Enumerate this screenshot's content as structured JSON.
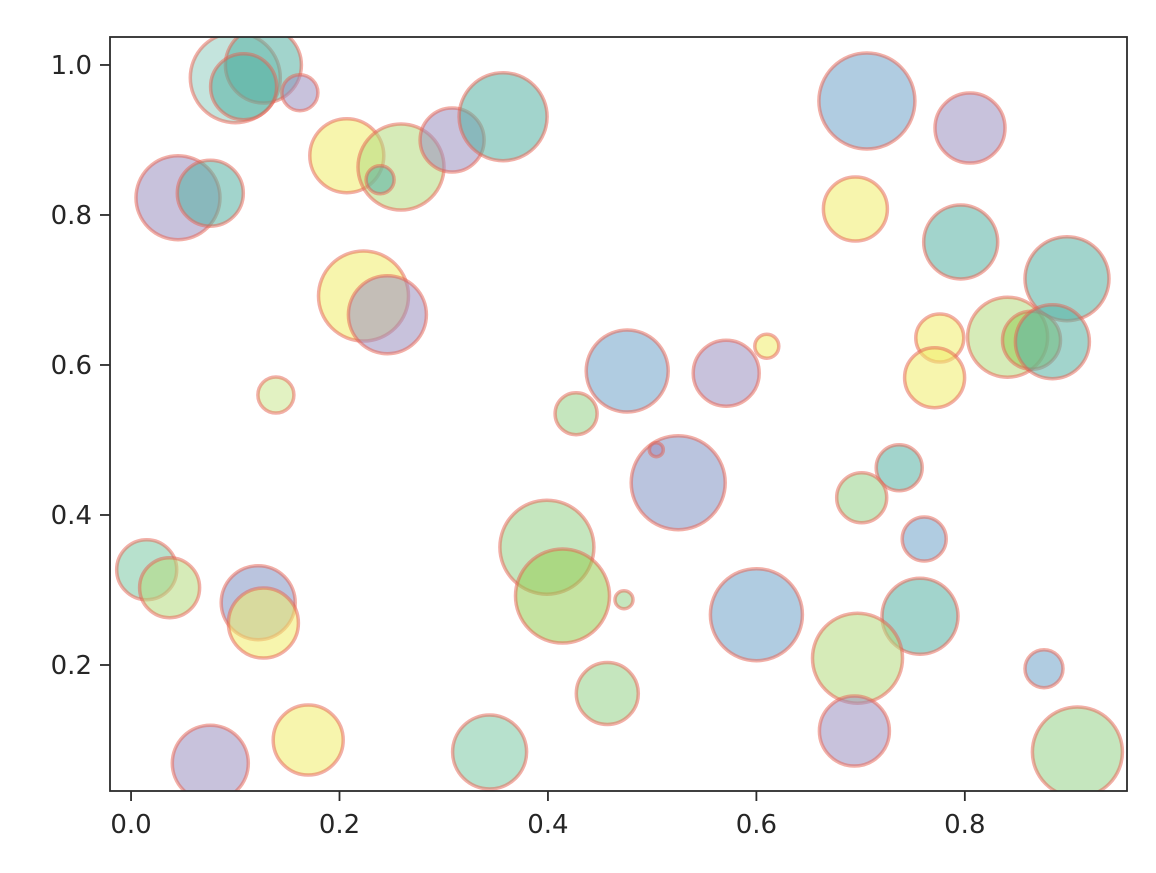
{
  "figure": {
    "background": "#ffffff",
    "spine_color": "#2b2b2b",
    "tick_color": "#2b2b2b",
    "tick_label_color": "#262626"
  },
  "chart_data": {
    "type": "scatter",
    "subtype": "bubble",
    "title": "",
    "xlabel": "",
    "ylabel": "",
    "grid": false,
    "legend": false,
    "xlim": [
      -0.0202,
      0.9556
    ],
    "ylim": [
      0.032,
      1.0373
    ],
    "x_tick_values": [
      0.0,
      0.2,
      0.4,
      0.6,
      0.8
    ],
    "x_tick_labels": [
      "0.0",
      "0.2",
      "0.4",
      "0.6",
      "0.8"
    ],
    "y_tick_values": [
      0.2,
      0.4,
      0.6,
      0.8,
      1.0
    ],
    "y_tick_labels": [
      "0.2",
      "0.4",
      "0.6",
      "0.8",
      "1.0"
    ],
    "marker_edge_color": "rgba(230,95,80,0.5)",
    "marker_edge_width": 3.5,
    "fill_alpha": 0.55,
    "palette": {
      "paleteal": "#93cdc1",
      "teal": "#55b0a2",
      "mint": "#7cc8a4",
      "purple": "#9a8fc0",
      "slate": "#8194c2",
      "blue": "#6fa3c9",
      "yellow": "#f0ec6a",
      "green": "#96cc52",
      "lightlime": "#b4da7e",
      "lightgreen": "#95d189",
      "palegreen": "#cbe78f"
    },
    "points": [
      {
        "x": 0.1,
        "y": 0.983,
        "r": 45,
        "c": "paleteal"
      },
      {
        "x": 0.127,
        "y": 1.0,
        "r": 38,
        "c": "teal"
      },
      {
        "x": 0.108,
        "y": 0.971,
        "r": 33,
        "c": "teal"
      },
      {
        "x": 0.162,
        "y": 0.963,
        "r": 18,
        "c": "purple"
      },
      {
        "x": 0.045,
        "y": 0.823,
        "r": 42,
        "c": "purple"
      },
      {
        "x": 0.076,
        "y": 0.829,
        "r": 33,
        "c": "teal"
      },
      {
        "x": 0.207,
        "y": 0.879,
        "r": 37,
        "c": "yellow"
      },
      {
        "x": 0.259,
        "y": 0.864,
        "r": 43,
        "c": "lightlime"
      },
      {
        "x": 0.239,
        "y": 0.847,
        "r": 14,
        "c": "teal"
      },
      {
        "x": 0.308,
        "y": 0.9,
        "r": 32,
        "c": "purple"
      },
      {
        "x": 0.357,
        "y": 0.931,
        "r": 44,
        "c": "teal"
      },
      {
        "x": 0.706,
        "y": 0.952,
        "r": 48,
        "c": "blue"
      },
      {
        "x": 0.805,
        "y": 0.916,
        "r": 35,
        "c": "purple"
      },
      {
        "x": 0.695,
        "y": 0.808,
        "r": 32,
        "c": "yellow"
      },
      {
        "x": 0.796,
        "y": 0.764,
        "r": 37,
        "c": "teal"
      },
      {
        "x": 0.898,
        "y": 0.715,
        "r": 42,
        "c": "teal"
      },
      {
        "x": 0.223,
        "y": 0.692,
        "r": 45,
        "c": "yellow"
      },
      {
        "x": 0.246,
        "y": 0.667,
        "r": 39,
        "c": "purple"
      },
      {
        "x": 0.139,
        "y": 0.56,
        "r": 18,
        "c": "palegreen"
      },
      {
        "x": 0.776,
        "y": 0.636,
        "r": 24,
        "c": "yellow"
      },
      {
        "x": 0.771,
        "y": 0.583,
        "r": 30,
        "c": "yellow"
      },
      {
        "x": 0.841,
        "y": 0.637,
        "r": 40,
        "c": "lightlime"
      },
      {
        "x": 0.864,
        "y": 0.633,
        "r": 29,
        "c": "green"
      },
      {
        "x": 0.884,
        "y": 0.631,
        "r": 37,
        "c": "teal"
      },
      {
        "x": 0.476,
        "y": 0.592,
        "r": 41,
        "c": "blue"
      },
      {
        "x": 0.427,
        "y": 0.535,
        "r": 21,
        "c": "lightgreen"
      },
      {
        "x": 0.571,
        "y": 0.589,
        "r": 33,
        "c": "purple"
      },
      {
        "x": 0.61,
        "y": 0.625,
        "r": 12,
        "c": "yellow"
      },
      {
        "x": 0.525,
        "y": 0.443,
        "r": 47,
        "c": "slate"
      },
      {
        "x": 0.504,
        "y": 0.487,
        "r": 7,
        "c": "purple"
      },
      {
        "x": 0.737,
        "y": 0.463,
        "r": 23,
        "c": "teal"
      },
      {
        "x": 0.701,
        "y": 0.423,
        "r": 25,
        "c": "lightgreen"
      },
      {
        "x": 0.761,
        "y": 0.368,
        "r": 22,
        "c": "blue"
      },
      {
        "x": 0.399,
        "y": 0.357,
        "r": 47,
        "c": "lightgreen"
      },
      {
        "x": 0.414,
        "y": 0.292,
        "r": 47,
        "c": "green"
      },
      {
        "x": 0.473,
        "y": 0.287,
        "r": 9,
        "c": "lightgreen"
      },
      {
        "x": 0.6,
        "y": 0.267,
        "r": 46,
        "c": "blue"
      },
      {
        "x": 0.457,
        "y": 0.162,
        "r": 31,
        "c": "lightgreen"
      },
      {
        "x": 0.344,
        "y": 0.084,
        "r": 37,
        "c": "mint"
      },
      {
        "x": 0.015,
        "y": 0.327,
        "r": 30,
        "c": "mint"
      },
      {
        "x": 0.037,
        "y": 0.303,
        "r": 30,
        "c": "lightlime"
      },
      {
        "x": 0.122,
        "y": 0.283,
        "r": 37,
        "c": "slate"
      },
      {
        "x": 0.127,
        "y": 0.256,
        "r": 35,
        "c": "yellow"
      },
      {
        "x": 0.076,
        "y": 0.069,
        "r": 38,
        "c": "purple"
      },
      {
        "x": 0.17,
        "y": 0.1,
        "r": 35,
        "c": "yellow"
      },
      {
        "x": 0.757,
        "y": 0.265,
        "r": 38,
        "c": "teal"
      },
      {
        "x": 0.697,
        "y": 0.209,
        "r": 45,
        "c": "lightlime"
      },
      {
        "x": 0.694,
        "y": 0.112,
        "r": 35,
        "c": "purple"
      },
      {
        "x": 0.876,
        "y": 0.195,
        "r": 19,
        "c": "blue"
      },
      {
        "x": 0.908,
        "y": 0.084,
        "r": 45,
        "c": "lightgreen"
      }
    ]
  }
}
